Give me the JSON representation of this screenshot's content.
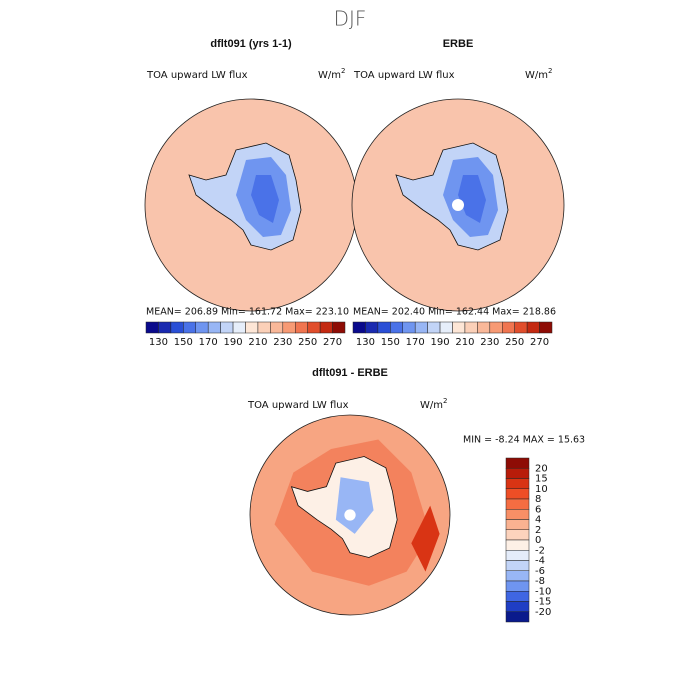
{
  "title": "DJF",
  "panels": [
    {
      "title": "dflt091 (yrs 1-1)",
      "variable": "TOA upward LW flux",
      "units": {
        "base": "W/m",
        "sup": "2"
      },
      "stats": "MEAN=  206.89   Min=  161.72   Max=  223.10"
    },
    {
      "title": "ERBE",
      "variable": "TOA upward LW flux",
      "units": {
        "base": "W/m",
        "sup": "2"
      },
      "stats": "MEAN=  202.40   Min=  162.44   Max=  218.86"
    },
    {
      "title": "dflt091 - ERBE",
      "variable": "TOA upward LW flux",
      "units": {
        "base": "W/m",
        "sup": "2"
      },
      "stats": "MIN =    -8.24  MAX =    15.63"
    }
  ],
  "colorbar": {
    "ticks": [
      130,
      150,
      170,
      190,
      210,
      230,
      250,
      270
    ],
    "colors": [
      "#0a0a8c",
      "#1a2ab0",
      "#2a4fd6",
      "#4a72e8",
      "#6f95f0",
      "#98b6f5",
      "#c2d4f7",
      "#e6eefa",
      "#fde6d6",
      "#fbd0b8",
      "#f9b899",
      "#f79a74",
      "#f07550",
      "#e14e2c",
      "#c42a12",
      "#8e0c05"
    ]
  },
  "diff_colorbar": {
    "ticks": [
      20,
      15,
      10,
      8,
      6,
      4,
      2,
      0,
      -2,
      -4,
      -6,
      -8,
      -10,
      -15,
      -20
    ],
    "colors": [
      "#8e0c05",
      "#b81c0a",
      "#d93414",
      "#ee4e26",
      "#f56d42",
      "#f88f66",
      "#fab291",
      "#fcd3bd",
      "#fdf0e6",
      "#e4ecfa",
      "#c2d4f7",
      "#98b6f5",
      "#6f95f0",
      "#3f66e3",
      "#1f3ec4",
      "#0a1a8c"
    ]
  }
}
